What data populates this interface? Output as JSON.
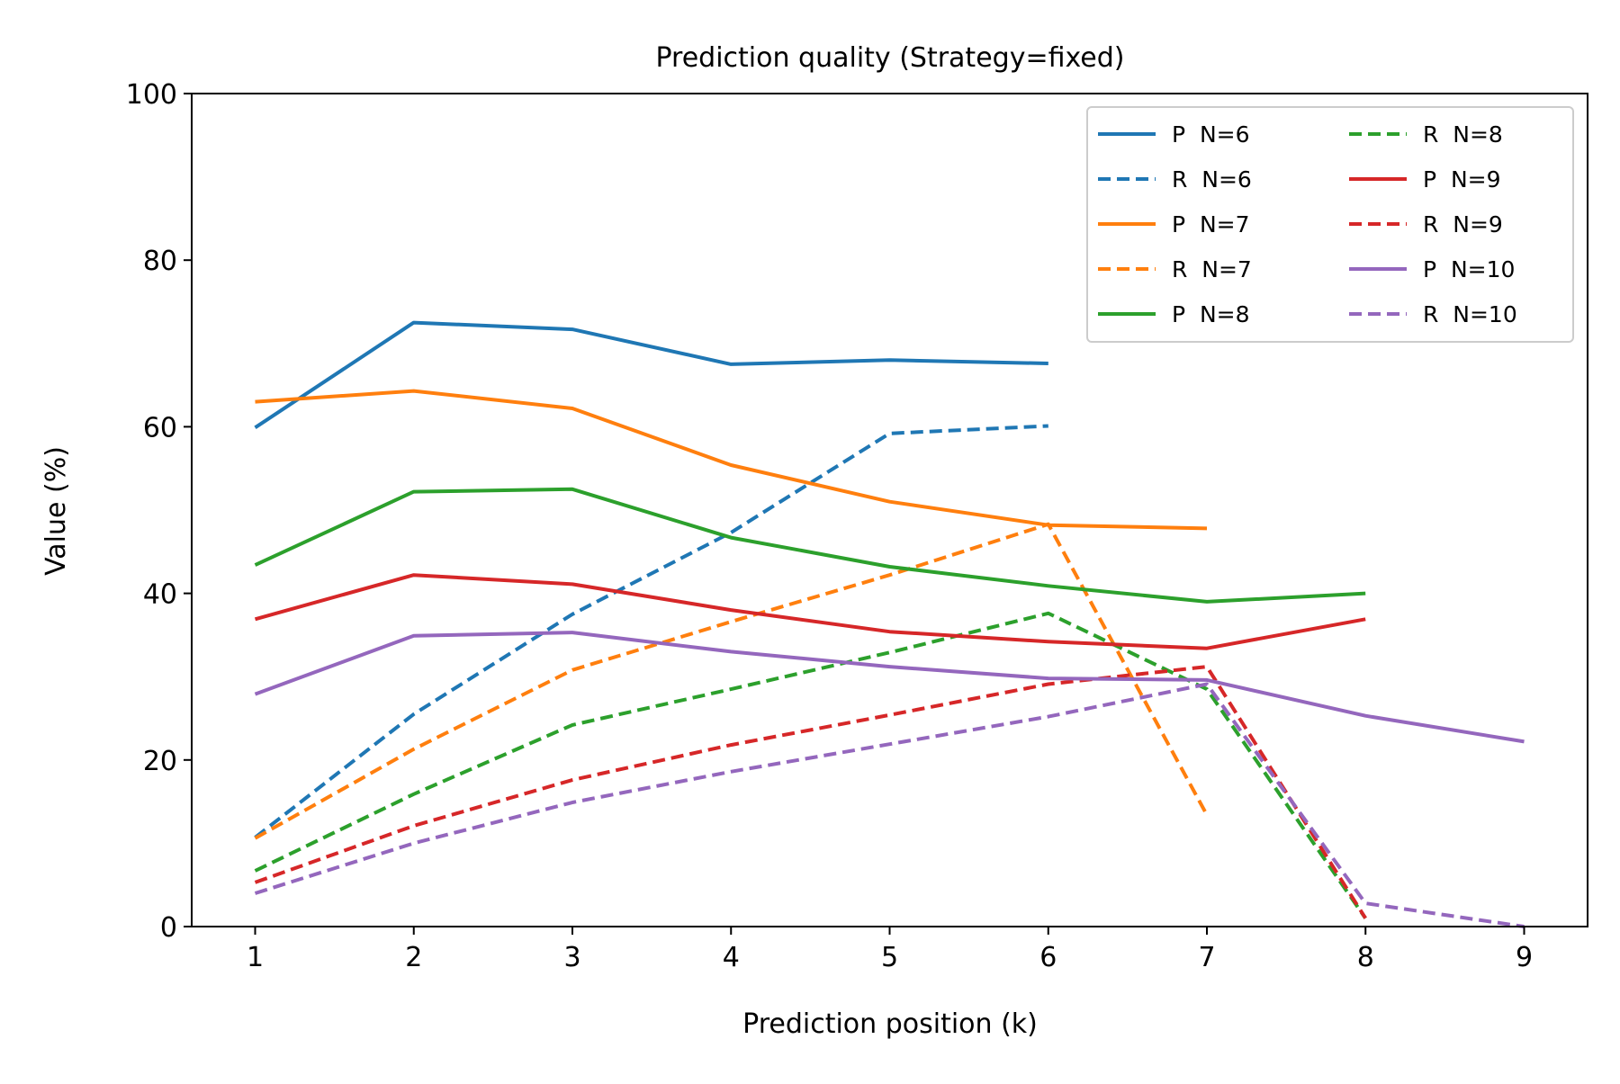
{
  "chart_data": {
    "type": "line",
    "title": "Prediction quality (Strategy=fixed)",
    "xlabel": "Prediction position (k)",
    "ylabel": "Value (%)",
    "x_ticks": [
      1,
      2,
      3,
      4,
      5,
      6,
      7,
      8,
      9
    ],
    "y_ticks": [
      0,
      20,
      40,
      60,
      80,
      100
    ],
    "xlim": [
      0.6,
      9.4
    ],
    "ylim": [
      0,
      100
    ],
    "grid": false,
    "legend_placement": "top-right",
    "legend_columns": 2,
    "series": [
      {
        "name": "P  N=6",
        "color": "#1f77b4",
        "dash": "solid",
        "x": [
          1,
          2,
          3,
          4,
          5,
          6
        ],
        "values": [
          59.9,
          72.5,
          71.7,
          67.5,
          68.0,
          67.6
        ]
      },
      {
        "name": "R  N=6",
        "color": "#1f77b4",
        "dash": "dashed",
        "x": [
          1,
          2,
          3,
          4,
          5,
          6
        ],
        "values": [
          10.7,
          25.5,
          37.5,
          47.3,
          59.2,
          60.1
        ]
      },
      {
        "name": "P  N=7",
        "color": "#ff7f0e",
        "dash": "solid",
        "x": [
          1,
          2,
          3,
          4,
          5,
          6,
          7
        ],
        "values": [
          63.0,
          64.3,
          62.2,
          55.4,
          51.0,
          48.2,
          47.8
        ]
      },
      {
        "name": "R  N=7",
        "color": "#ff7f0e",
        "dash": "dashed",
        "x": [
          1,
          2,
          3,
          4,
          5,
          6,
          7
        ],
        "values": [
          10.6,
          21.3,
          30.8,
          36.6,
          42.2,
          48.3,
          13.4
        ]
      },
      {
        "name": "P  N=8",
        "color": "#2ca02c",
        "dash": "solid",
        "x": [
          1,
          2,
          3,
          4,
          5,
          6,
          7,
          8
        ],
        "values": [
          43.4,
          52.2,
          52.5,
          46.7,
          43.2,
          40.9,
          39.0,
          40.0
        ]
      },
      {
        "name": "R  N=8",
        "color": "#2ca02c",
        "dash": "dashed",
        "x": [
          1,
          2,
          3,
          4,
          5,
          6,
          7,
          8
        ],
        "values": [
          6.7,
          15.9,
          24.2,
          28.5,
          32.9,
          37.6,
          28.5,
          1.0
        ]
      },
      {
        "name": "P  N=9",
        "color": "#d62728",
        "dash": "solid",
        "x": [
          1,
          2,
          3,
          4,
          5,
          6,
          7,
          8
        ],
        "values": [
          36.9,
          42.2,
          41.1,
          38.0,
          35.4,
          34.2,
          33.4,
          36.9
        ]
      },
      {
        "name": "R  N=9",
        "color": "#d62728",
        "dash": "dashed",
        "x": [
          1,
          2,
          3,
          4,
          5,
          6,
          7,
          8
        ],
        "values": [
          5.3,
          12.1,
          17.6,
          21.8,
          25.4,
          29.1,
          31.2,
          1.0
        ]
      },
      {
        "name": "P  N=10",
        "color": "#9467bd",
        "dash": "solid",
        "x": [
          1,
          2,
          3,
          4,
          5,
          6,
          7,
          8,
          9
        ],
        "values": [
          27.9,
          34.9,
          35.3,
          33.0,
          31.2,
          29.8,
          29.6,
          25.3,
          22.2
        ]
      },
      {
        "name": "R  N=10",
        "color": "#9467bd",
        "dash": "dashed",
        "x": [
          1,
          2,
          3,
          4,
          5,
          6,
          7,
          8,
          9
        ],
        "values": [
          4.0,
          10.0,
          14.9,
          18.6,
          21.9,
          25.2,
          29.1,
          2.8,
          0.0
        ]
      }
    ]
  }
}
